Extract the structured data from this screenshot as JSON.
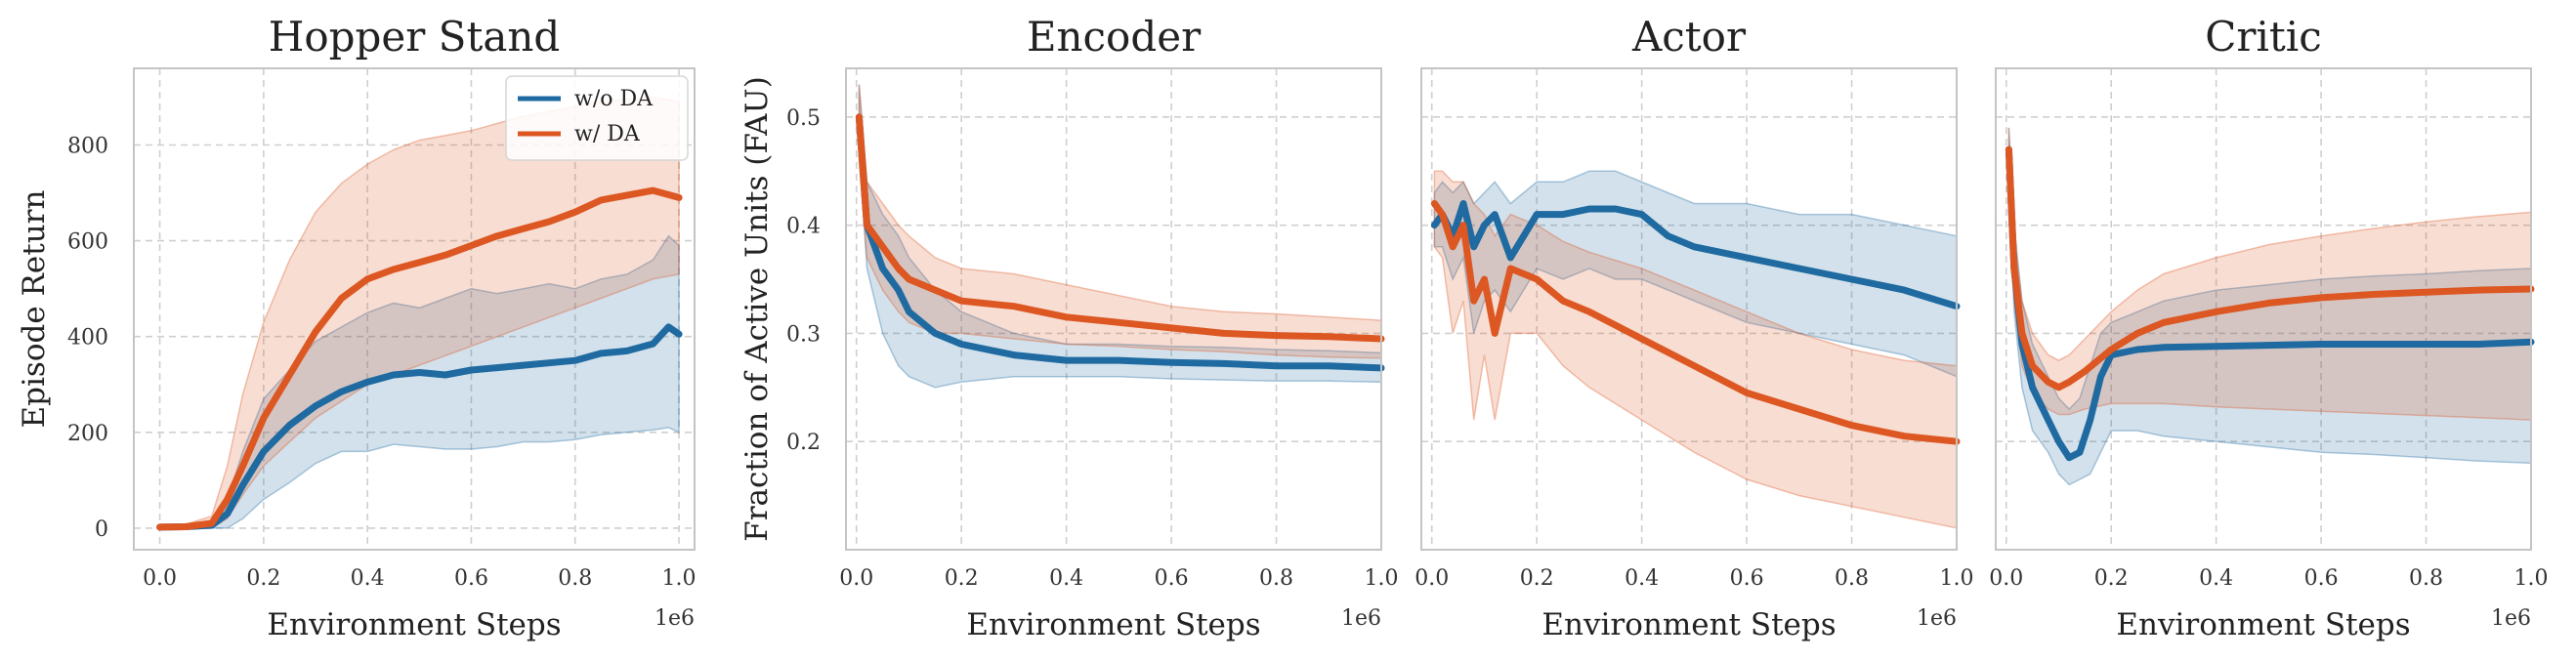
{
  "colors": {
    "no_da": "#1f6aa0",
    "da": "#dc5722",
    "grid": "#cfcfcf",
    "spine": "#c4c4c4"
  },
  "chart_data": [
    {
      "type": "line",
      "title": "Hopper Stand",
      "xlabel": "Environment Steps",
      "ylabel": "Episode Return",
      "x_exponent": "1e6",
      "xlim": [
        -0.05,
        1.03
      ],
      "ylim": [
        -45,
        960
      ],
      "xticks": [
        "0.0",
        "0.2",
        "0.4",
        "0.6",
        "0.8",
        "1.0"
      ],
      "yticks": [
        "0",
        "200",
        "400",
        "600",
        "800"
      ],
      "grid": true,
      "legend": {
        "location": "upper right",
        "entries": [
          "w/o DA",
          "w/ DA"
        ]
      },
      "series": [
        {
          "name": "w/o DA",
          "x": [
            0,
            0.05,
            0.1,
            0.13,
            0.16,
            0.2,
            0.25,
            0.3,
            0.35,
            0.4,
            0.45,
            0.5,
            0.55,
            0.6,
            0.65,
            0.7,
            0.75,
            0.8,
            0.85,
            0.9,
            0.95,
            0.98,
            1.0
          ],
          "y": [
            2,
            3,
            6,
            30,
            90,
            160,
            215,
            255,
            285,
            305,
            320,
            325,
            320,
            330,
            335,
            340,
            345,
            350,
            365,
            370,
            385,
            420,
            405
          ],
          "lower": [
            0,
            0,
            0,
            0,
            20,
            60,
            95,
            135,
            160,
            160,
            175,
            170,
            165,
            165,
            170,
            180,
            180,
            185,
            195,
            200,
            205,
            210,
            200
          ],
          "upper": [
            5,
            8,
            15,
            60,
            160,
            270,
            330,
            390,
            420,
            450,
            470,
            460,
            480,
            500,
            490,
            500,
            510,
            500,
            520,
            530,
            560,
            610,
            590
          ]
        },
        {
          "name": "w/ DA",
          "x": [
            0,
            0.05,
            0.1,
            0.13,
            0.16,
            0.2,
            0.25,
            0.3,
            0.35,
            0.4,
            0.45,
            0.5,
            0.55,
            0.6,
            0.65,
            0.7,
            0.75,
            0.8,
            0.85,
            0.9,
            0.95,
            1.0
          ],
          "y": [
            2,
            3,
            10,
            60,
            130,
            230,
            320,
            410,
            480,
            520,
            540,
            555,
            570,
            590,
            610,
            625,
            640,
            660,
            685,
            695,
            705,
            690
          ],
          "lower": [
            0,
            0,
            0,
            20,
            70,
            130,
            180,
            230,
            265,
            300,
            320,
            340,
            360,
            380,
            400,
            420,
            440,
            460,
            480,
            500,
            520,
            530
          ],
          "upper": [
            5,
            8,
            25,
            130,
            280,
            430,
            560,
            660,
            720,
            760,
            790,
            810,
            820,
            830,
            845,
            860,
            870,
            880,
            890,
            895,
            900,
            890
          ]
        }
      ]
    },
    {
      "type": "line",
      "title": "Encoder",
      "xlabel": "Environment Steps",
      "ylabel": "Fraction of Active Units (FAU)",
      "x_exponent": "1e6",
      "xlim": [
        -0.02,
        1.0
      ],
      "ylim": [
        0.1,
        0.545
      ],
      "xticks": [
        "0.0",
        "0.2",
        "0.4",
        "0.6",
        "0.8",
        "1.0"
      ],
      "yticks": [
        "0.2",
        "0.3",
        "0.4",
        "0.5"
      ],
      "grid": true,
      "series": [
        {
          "name": "w/o DA",
          "x": [
            0.005,
            0.02,
            0.05,
            0.08,
            0.1,
            0.15,
            0.2,
            0.3,
            0.4,
            0.5,
            0.6,
            0.7,
            0.8,
            0.9,
            1.0
          ],
          "y": [
            0.5,
            0.4,
            0.36,
            0.34,
            0.32,
            0.3,
            0.29,
            0.28,
            0.275,
            0.275,
            0.273,
            0.272,
            0.27,
            0.27,
            0.268
          ],
          "lower": [
            0.47,
            0.36,
            0.3,
            0.27,
            0.26,
            0.25,
            0.255,
            0.26,
            0.26,
            0.26,
            0.258,
            0.257,
            0.256,
            0.256,
            0.255
          ],
          "upper": [
            0.53,
            0.44,
            0.41,
            0.39,
            0.37,
            0.34,
            0.32,
            0.3,
            0.29,
            0.29,
            0.288,
            0.287,
            0.285,
            0.284,
            0.282
          ]
        },
        {
          "name": "w/ DA",
          "x": [
            0.005,
            0.02,
            0.05,
            0.08,
            0.1,
            0.15,
            0.2,
            0.3,
            0.4,
            0.5,
            0.6,
            0.7,
            0.8,
            0.9,
            1.0
          ],
          "y": [
            0.5,
            0.4,
            0.38,
            0.36,
            0.35,
            0.34,
            0.33,
            0.325,
            0.315,
            0.31,
            0.305,
            0.3,
            0.298,
            0.297,
            0.295
          ],
          "lower": [
            0.46,
            0.37,
            0.34,
            0.32,
            0.31,
            0.3,
            0.3,
            0.295,
            0.29,
            0.288,
            0.285,
            0.283,
            0.28,
            0.278,
            0.277
          ],
          "upper": [
            0.53,
            0.44,
            0.42,
            0.4,
            0.39,
            0.37,
            0.36,
            0.355,
            0.345,
            0.335,
            0.325,
            0.32,
            0.318,
            0.315,
            0.312
          ]
        }
      ]
    },
    {
      "type": "line",
      "title": "Actor",
      "xlabel": "Environment Steps",
      "x_exponent": "1e6",
      "xlim": [
        -0.02,
        1.0
      ],
      "ylim": [
        0.1,
        0.545
      ],
      "xticks": [
        "0.0",
        "0.2",
        "0.4",
        "0.6",
        "0.8",
        "1.0"
      ],
      "grid": true,
      "series": [
        {
          "name": "w/o DA",
          "x": [
            0.005,
            0.02,
            0.04,
            0.06,
            0.08,
            0.1,
            0.12,
            0.15,
            0.2,
            0.25,
            0.3,
            0.35,
            0.4,
            0.45,
            0.5,
            0.6,
            0.7,
            0.8,
            0.9,
            1.0
          ],
          "y": [
            0.4,
            0.41,
            0.39,
            0.42,
            0.38,
            0.4,
            0.41,
            0.37,
            0.41,
            0.41,
            0.415,
            0.415,
            0.41,
            0.39,
            0.38,
            0.37,
            0.36,
            0.35,
            0.34,
            0.325
          ],
          "lower": [
            0.38,
            0.38,
            0.35,
            0.37,
            0.3,
            0.33,
            0.34,
            0.32,
            0.36,
            0.35,
            0.36,
            0.35,
            0.35,
            0.34,
            0.33,
            0.31,
            0.3,
            0.29,
            0.28,
            0.26
          ],
          "upper": [
            0.43,
            0.44,
            0.43,
            0.44,
            0.42,
            0.43,
            0.44,
            0.42,
            0.44,
            0.44,
            0.45,
            0.45,
            0.44,
            0.43,
            0.42,
            0.42,
            0.41,
            0.41,
            0.4,
            0.39
          ]
        },
        {
          "name": "w/ DA",
          "x": [
            0.005,
            0.02,
            0.04,
            0.06,
            0.08,
            0.1,
            0.12,
            0.15,
            0.2,
            0.25,
            0.3,
            0.4,
            0.5,
            0.6,
            0.7,
            0.8,
            0.9,
            1.0
          ],
          "y": [
            0.42,
            0.41,
            0.38,
            0.4,
            0.33,
            0.35,
            0.3,
            0.36,
            0.35,
            0.33,
            0.32,
            0.295,
            0.27,
            0.245,
            0.23,
            0.215,
            0.205,
            0.2
          ],
          "lower": [
            0.38,
            0.37,
            0.3,
            0.33,
            0.22,
            0.28,
            0.22,
            0.3,
            0.3,
            0.27,
            0.25,
            0.22,
            0.19,
            0.165,
            0.15,
            0.14,
            0.13,
            0.12
          ],
          "upper": [
            0.45,
            0.45,
            0.44,
            0.44,
            0.42,
            0.41,
            0.39,
            0.41,
            0.4,
            0.385,
            0.375,
            0.36,
            0.34,
            0.32,
            0.3,
            0.285,
            0.275,
            0.27
          ]
        }
      ]
    },
    {
      "type": "line",
      "title": "Critic",
      "xlabel": "Environment Steps",
      "x_exponent": "1e6",
      "xlim": [
        -0.02,
        1.0
      ],
      "ylim": [
        0.1,
        0.545
      ],
      "xticks": [
        "0.0",
        "0.2",
        "0.4",
        "0.6",
        "0.8",
        "1.0"
      ],
      "grid": true,
      "series": [
        {
          "name": "w/o DA",
          "x": [
            0.005,
            0.015,
            0.03,
            0.05,
            0.08,
            0.1,
            0.12,
            0.14,
            0.16,
            0.18,
            0.2,
            0.25,
            0.3,
            0.4,
            0.5,
            0.6,
            0.7,
            0.8,
            0.9,
            1.0
          ],
          "y": [
            0.47,
            0.36,
            0.29,
            0.25,
            0.22,
            0.2,
            0.185,
            0.19,
            0.22,
            0.26,
            0.28,
            0.285,
            0.287,
            0.288,
            0.289,
            0.29,
            0.29,
            0.29,
            0.29,
            0.292
          ],
          "lower": [
            0.44,
            0.32,
            0.25,
            0.21,
            0.19,
            0.17,
            0.16,
            0.165,
            0.17,
            0.19,
            0.21,
            0.21,
            0.205,
            0.2,
            0.195,
            0.19,
            0.188,
            0.185,
            0.182,
            0.18
          ],
          "upper": [
            0.49,
            0.4,
            0.33,
            0.29,
            0.26,
            0.24,
            0.23,
            0.24,
            0.27,
            0.3,
            0.31,
            0.32,
            0.33,
            0.34,
            0.345,
            0.35,
            0.353,
            0.355,
            0.358,
            0.36
          ]
        },
        {
          "name": "w/ DA",
          "x": [
            0.005,
            0.015,
            0.03,
            0.05,
            0.08,
            0.1,
            0.12,
            0.15,
            0.2,
            0.25,
            0.3,
            0.4,
            0.5,
            0.6,
            0.7,
            0.8,
            0.9,
            1.0
          ],
          "y": [
            0.47,
            0.36,
            0.3,
            0.27,
            0.255,
            0.25,
            0.255,
            0.265,
            0.285,
            0.3,
            0.31,
            0.32,
            0.328,
            0.333,
            0.336,
            0.338,
            0.34,
            0.341
          ],
          "lower": [
            0.44,
            0.33,
            0.27,
            0.245,
            0.23,
            0.225,
            0.225,
            0.23,
            0.235,
            0.235,
            0.235,
            0.232,
            0.23,
            0.228,
            0.226,
            0.224,
            0.222,
            0.22
          ],
          "upper": [
            0.49,
            0.39,
            0.33,
            0.3,
            0.28,
            0.275,
            0.28,
            0.295,
            0.32,
            0.34,
            0.355,
            0.37,
            0.382,
            0.39,
            0.397,
            0.403,
            0.408,
            0.412
          ]
        }
      ]
    }
  ]
}
